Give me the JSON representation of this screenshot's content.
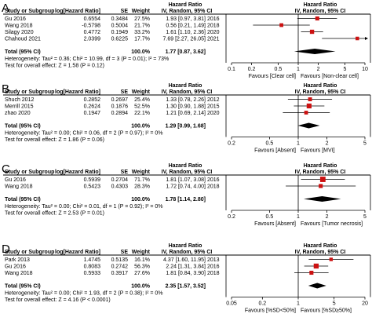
{
  "chart_data": [
    {
      "type": "forest",
      "panel_label": "A",
      "header_top": "Hazard Ratio",
      "columns": [
        "Study or Subgroup",
        "log[Hazard Ratio]",
        "SE",
        "Weight",
        "IV, Random, 95% CI",
        "",
        "IV, Random, 95% CI"
      ],
      "header_plot_top": "Hazard Ratio",
      "studies": [
        {
          "name": "Gu 2016",
          "log_hr": "0.6554",
          "se": "0.3484",
          "weight": "27.5%",
          "ci_text": "1.93 [0.97, 3.81]",
          "year": "2016",
          "hr": 1.93,
          "lo": 0.97,
          "hi": 3.81,
          "w": 27.5
        },
        {
          "name": "Wang  2018",
          "log_hr": "-0.5798",
          "se": "0.5004",
          "weight": "21.7%",
          "ci_text": "0.56 [0.21, 1.49]",
          "year": "2018",
          "hr": 0.56,
          "lo": 0.21,
          "hi": 1.49,
          "w": 21.7
        },
        {
          "name": "Silagy 2020",
          "log_hr": "0.4772",
          "se": "0.1949",
          "weight": "33.2%",
          "ci_text": "1.61 [1.10, 2.36]",
          "year": "2020",
          "hr": 1.61,
          "lo": 1.1,
          "hi": 2.36,
          "w": 33.2
        },
        {
          "name": "Chahoud 2021",
          "log_hr": "2.0399",
          "se": "0.6225",
          "weight": "17.7%",
          "ci_text": "7.69 [2.27, 26.05]",
          "year": "2021",
          "hr": 7.69,
          "lo": 2.27,
          "hi": 26.05,
          "w": 17.7
        }
      ],
      "total": {
        "label": "Total (95% CI)",
        "weight": "100.0%",
        "ci_text": "1.77 [0.87, 3.62]",
        "hr": 1.77,
        "lo": 0.87,
        "hi": 3.62
      },
      "heterogeneity": "Heterogeneity: Tau² = 0.36; Chi² = 10.99, df = 3 (P = 0.01); I² = 73%",
      "overall_effect": "Test for overall effect: Z = 1.58 (P = 0.12)",
      "xscale": "log",
      "xlim": [
        0.1,
        10
      ],
      "ticks": [
        {
          "v": 0.1,
          "label": "0.1"
        },
        {
          "v": 0.2,
          "label": "0.2"
        },
        {
          "v": 0.5,
          "label": "0.5"
        },
        {
          "v": 1,
          "label": "1"
        },
        {
          "v": 2,
          "label": "2"
        },
        {
          "v": 5,
          "label": "5"
        },
        {
          "v": 10,
          "label": "10"
        }
      ],
      "favours_left": "Favours [Clear cell]",
      "favours_right": "Favours [Non-clear cell]"
    },
    {
      "type": "forest",
      "panel_label": "B",
      "header_top": "Hazard Ratio",
      "columns": [
        "Study or Subgroup",
        "log[Hazard Ratio]",
        "SE",
        "Weight",
        "IV, Random, 95% CI",
        "",
        "IV, Random, 95% CI"
      ],
      "header_plot_top": "Hazard Ratio",
      "studies": [
        {
          "name": "Shuch 2012",
          "log_hr": "0.2852",
          "se": "0.2697",
          "weight": "25.4%",
          "ci_text": "1.33 [0.78, 2.26]",
          "year": "2012",
          "hr": 1.33,
          "lo": 0.78,
          "hi": 2.26,
          "w": 25.4
        },
        {
          "name": "Merrill 2015",
          "log_hr": "0.2624",
          "se": "0.1876",
          "weight": "52.5%",
          "ci_text": "1.30 [0.90, 1.88]",
          "year": "2015",
          "hr": 1.3,
          "lo": 0.9,
          "hi": 1.88,
          "w": 52.5
        },
        {
          "name": "zhao 2020",
          "log_hr": "0.1947",
          "se": "0.2894",
          "weight": "22.1%",
          "ci_text": "1.21 [0.69, 2.14]",
          "year": "2020",
          "hr": 1.21,
          "lo": 0.69,
          "hi": 2.14,
          "w": 22.1
        }
      ],
      "total": {
        "label": "Total (95% CI)",
        "weight": "100.0%",
        "ci_text": "1.29 [0.99, 1.68]",
        "hr": 1.29,
        "lo": 0.99,
        "hi": 1.68
      },
      "heterogeneity": "Heterogeneity: Tau² = 0.00; Chi² = 0.06, df = 2 (P = 0.97); I² = 0%",
      "overall_effect": "Test for overall effect: Z = 1.86 (P = 0.06)",
      "xscale": "log",
      "xlim": [
        0.2,
        5
      ],
      "ticks": [
        {
          "v": 0.2,
          "label": "0.2"
        },
        {
          "v": 0.5,
          "label": "0.5"
        },
        {
          "v": 1,
          "label": "1"
        },
        {
          "v": 2,
          "label": "2"
        },
        {
          "v": 5,
          "label": "5"
        }
      ],
      "favours_left": "Favours [Absent]",
      "favours_right": "Favours [MVI]"
    },
    {
      "type": "forest",
      "panel_label": "C",
      "header_top": "Hazard Ratio",
      "columns": [
        "Study or Subgroup",
        "log[Hazard Ratio]",
        "SE",
        "Weight",
        "IV, Random, 95% CI",
        "",
        "IV, Random, 95% CI"
      ],
      "header_plot_top": "Hazard Ratio",
      "studies": [
        {
          "name": "Gu 2016",
          "log_hr": "0.5939",
          "se": "0.2704",
          "weight": "71.7%",
          "ci_text": "1.81 [1.07, 3.08]",
          "year": "2016",
          "hr": 1.81,
          "lo": 1.07,
          "hi": 3.08,
          "w": 71.7
        },
        {
          "name": "Wang  2018",
          "log_hr": "0.5423",
          "se": "0.4303",
          "weight": "28.3%",
          "ci_text": "1.72 [0.74, 4.00]",
          "year": "2018",
          "hr": 1.72,
          "lo": 0.74,
          "hi": 4.0,
          "w": 28.3
        }
      ],
      "total": {
        "label": "Total (95% CI)",
        "weight": "100.0%",
        "ci_text": "1.78 [1.14, 2.80]",
        "hr": 1.78,
        "lo": 1.14,
        "hi": 2.8
      },
      "heterogeneity": "Heterogeneity: Tau² = 0.00; Chi² = 0.01, df = 1 (P = 0.92); I² = 0%",
      "overall_effect": "Test for overall effect: Z = 2.53 (P = 0.01)",
      "xscale": "log",
      "xlim": [
        0.2,
        5
      ],
      "ticks": [
        {
          "v": 0.2,
          "label": "0.2"
        },
        {
          "v": 0.5,
          "label": "0.5"
        },
        {
          "v": 1,
          "label": "1"
        },
        {
          "v": 2,
          "label": "2"
        },
        {
          "v": 5,
          "label": "5"
        }
      ],
      "favours_left": "Favours [Absent]",
      "favours_right": "Favours [Tumor necrosis]"
    },
    {
      "type": "forest",
      "panel_label": "D",
      "header_top": "Hazard Ratio",
      "columns": [
        "Study or Subgroup",
        "log[Hazard Ratio]",
        "SE",
        "Weight",
        "IV, Random, 95% CI",
        "",
        "IV, Random, 95% CI"
      ],
      "header_plot_top": "Hazard Ratio",
      "studies": [
        {
          "name": "Park 2013",
          "log_hr": "1.4745",
          "se": "0.5135",
          "weight": "16.1%",
          "ci_text": "4.37 [1.60, 11.95]",
          "year": "2013",
          "hr": 4.37,
          "lo": 1.6,
          "hi": 11.95,
          "w": 16.1
        },
        {
          "name": "Gu 2016",
          "log_hr": "0.8083",
          "se": "0.2742",
          "weight": "56.3%",
          "ci_text": "2.24 [1.31, 3.84]",
          "year": "2016",
          "hr": 2.24,
          "lo": 1.31,
          "hi": 3.84,
          "w": 56.3
        },
        {
          "name": "Wang  2018",
          "log_hr": "0.5933",
          "se": "0.3917",
          "weight": "27.6%",
          "ci_text": "1.81 [0.84, 3.90]",
          "year": "2018",
          "hr": 1.81,
          "lo": 0.84,
          "hi": 3.9,
          "w": 27.6
        }
      ],
      "total": {
        "label": "Total (95% CI)",
        "weight": "100.0%",
        "ci_text": "2.35 [1.57, 3.52]",
        "hr": 2.35,
        "lo": 1.57,
        "hi": 3.52
      },
      "heterogeneity": "Heterogeneity: Tau² = 0.00; Chi² = 1.93, df = 2 (P = 0.38); I² = 0%",
      "overall_effect": "Test for overall effect: Z = 4.16 (P < 0.0001)",
      "xscale": "log",
      "xlim": [
        0.05,
        20
      ],
      "ticks": [
        {
          "v": 0.05,
          "label": "0.05"
        },
        {
          "v": 0.2,
          "label": "0.2"
        },
        {
          "v": 1,
          "label": "1"
        },
        {
          "v": 5,
          "label": "5"
        },
        {
          "v": 20,
          "label": "20"
        }
      ],
      "favours_left": "Favours [%SD<50%]",
      "favours_right": "Favours [%SD≥50%]"
    }
  ],
  "colors": {
    "study_square": "#cc1111",
    "total_diamond": "#000000",
    "rule": "#000000"
  }
}
